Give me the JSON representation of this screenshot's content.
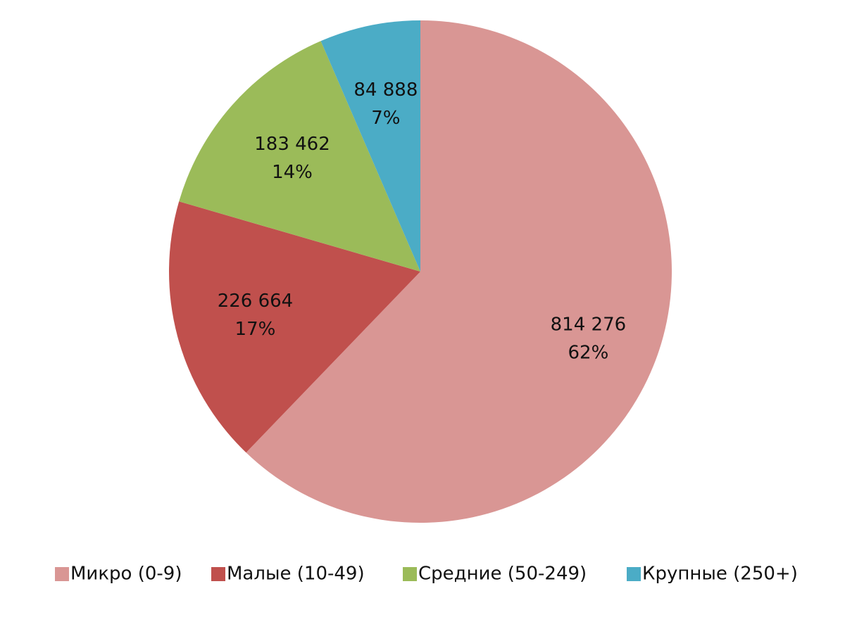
{
  "chart_data": {
    "type": "pie",
    "categories": [
      "Микро (0-9)",
      "Малые (10-49)",
      "Средние (50-249)",
      "Крупные (250+)"
    ],
    "values": [
      814276,
      226664,
      183462,
      84888
    ],
    "value_labels": [
      "814 276",
      "226 664",
      "183 462",
      "84 888"
    ],
    "percent_labels": [
      "62%",
      "17%",
      "14%",
      "7%"
    ],
    "colors": [
      "#d99694",
      "#c0504d",
      "#9bbb59",
      "#4bacc6"
    ],
    "legend": "bottom"
  }
}
